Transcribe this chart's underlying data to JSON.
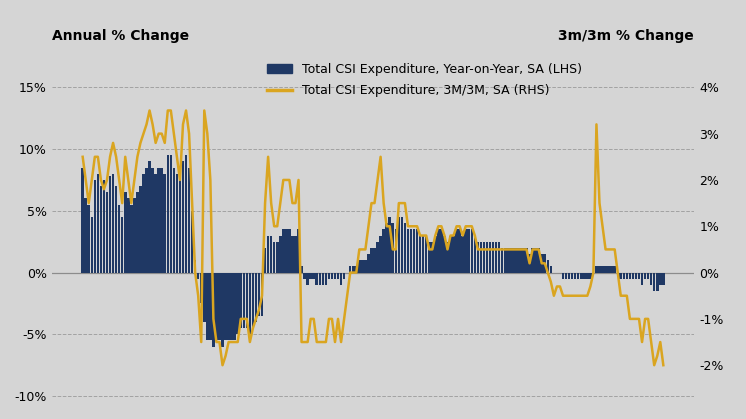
{
  "title_left": "Annual % Change",
  "title_right": "3m/3m % Change",
  "bar_color": "#1F3864",
  "line_color": "#DAA520",
  "background_color": "#D5D5D5",
  "ylim_left": [
    -10.5,
    18.0
  ],
  "ylim_right": [
    -2.8,
    4.8
  ],
  "yticks_left": [
    -10,
    -5,
    0,
    5,
    10,
    15
  ],
  "yticks_right": [
    -2,
    -1,
    0,
    1,
    2,
    3,
    4
  ],
  "legend_bar_label": "Total CSI Expenditure, Year-on-Year, SA (LHS)",
  "legend_line_label": "Total CSI Expenditure, 3M/3M, SA (RHS)",
  "bar_values": [
    8.5,
    6.0,
    5.5,
    4.5,
    7.5,
    8.0,
    7.0,
    7.5,
    6.5,
    7.8,
    8.0,
    7.0,
    5.5,
    4.5,
    6.5,
    6.0,
    5.5,
    6.0,
    6.5,
    7.0,
    8.0,
    8.5,
    9.0,
    8.5,
    8.0,
    8.5,
    8.5,
    8.0,
    9.5,
    9.5,
    8.5,
    8.0,
    7.5,
    9.0,
    9.5,
    8.5,
    5.0,
    1.0,
    -0.5,
    -2.5,
    -4.0,
    -5.5,
    -5.5,
    -6.0,
    -5.5,
    -5.5,
    -6.0,
    -5.5,
    -5.5,
    -5.5,
    -5.5,
    -5.0,
    -4.5,
    -4.5,
    -4.5,
    -5.0,
    -4.5,
    -4.0,
    -3.5,
    -3.5,
    2.0,
    3.0,
    3.0,
    2.5,
    2.5,
    3.0,
    3.5,
    3.5,
    3.5,
    3.0,
    3.0,
    3.5,
    0.5,
    -0.5,
    -1.0,
    -0.5,
    -0.5,
    -1.0,
    -1.0,
    -1.0,
    -1.0,
    -0.5,
    -0.5,
    -0.5,
    -0.5,
    -1.0,
    -0.5,
    0.0,
    0.5,
    0.5,
    0.5,
    1.0,
    1.0,
    1.0,
    1.5,
    2.0,
    2.0,
    2.5,
    3.0,
    3.5,
    4.0,
    4.5,
    4.0,
    3.5,
    4.5,
    4.5,
    4.0,
    3.5,
    3.5,
    3.5,
    3.5,
    3.0,
    3.0,
    3.0,
    2.5,
    2.5,
    3.0,
    3.5,
    3.5,
    3.0,
    2.5,
    3.0,
    3.0,
    3.5,
    3.5,
    3.0,
    3.5,
    3.5,
    3.5,
    3.0,
    2.5,
    2.5,
    2.5,
    2.5,
    2.5,
    2.5,
    2.5,
    2.5,
    2.0,
    2.0,
    2.0,
    2.0,
    2.0,
    2.0,
    2.0,
    2.0,
    2.0,
    1.5,
    2.0,
    2.0,
    2.0,
    1.5,
    1.5,
    1.0,
    0.5,
    0.0,
    0.0,
    0.0,
    -0.5,
    -0.5,
    -0.5,
    -0.5,
    -0.5,
    -0.5,
    -0.5,
    -0.5,
    -0.5,
    -0.5,
    0.0,
    0.5,
    0.5,
    0.5,
    0.5,
    0.5,
    0.5,
    0.5,
    0.0,
    -0.5,
    -0.5,
    -0.5,
    -0.5,
    -0.5,
    -0.5,
    -0.5,
    -1.0,
    -0.5,
    -0.5,
    -1.0,
    -1.5,
    -1.5,
    -1.0,
    -1.0
  ],
  "line_values": [
    2.5,
    2.0,
    1.5,
    2.0,
    2.5,
    2.5,
    2.0,
    1.8,
    2.0,
    2.5,
    2.8,
    2.5,
    2.0,
    1.5,
    2.5,
    2.0,
    1.5,
    2.0,
    2.5,
    2.8,
    3.0,
    3.2,
    3.5,
    3.2,
    2.8,
    3.0,
    3.0,
    2.8,
    3.5,
    3.5,
    3.0,
    2.5,
    2.0,
    3.2,
    3.5,
    3.0,
    1.5,
    0.0,
    -0.5,
    -1.5,
    3.5,
    3.0,
    2.0,
    -1.0,
    -1.5,
    -1.5,
    -2.0,
    -1.8,
    -1.5,
    -1.5,
    -1.5,
    -1.5,
    -1.0,
    -1.0,
    -1.0,
    -1.5,
    -1.2,
    -1.0,
    -0.8,
    -0.5,
    1.5,
    2.5,
    1.5,
    1.0,
    1.0,
    1.5,
    2.0,
    2.0,
    2.0,
    1.5,
    1.5,
    2.0,
    -1.5,
    -1.5,
    -1.5,
    -1.0,
    -1.0,
    -1.5,
    -1.5,
    -1.5,
    -1.5,
    -1.0,
    -1.0,
    -1.5,
    -1.0,
    -1.5,
    -1.0,
    -0.5,
    0.0,
    0.0,
    0.0,
    0.5,
    0.5,
    0.5,
    1.0,
    1.5,
    1.5,
    2.0,
    2.5,
    1.5,
    1.0,
    1.0,
    0.5,
    0.5,
    1.5,
    1.5,
    1.5,
    1.0,
    1.0,
    1.0,
    1.0,
    0.8,
    0.8,
    0.8,
    0.5,
    0.5,
    0.8,
    1.0,
    1.0,
    0.8,
    0.5,
    0.8,
    0.8,
    1.0,
    1.0,
    0.8,
    1.0,
    1.0,
    1.0,
    0.8,
    0.5,
    0.5,
    0.5,
    0.5,
    0.5,
    0.5,
    0.5,
    0.5,
    0.5,
    0.5,
    0.5,
    0.5,
    0.5,
    0.5,
    0.5,
    0.5,
    0.5,
    0.2,
    0.5,
    0.5,
    0.5,
    0.2,
    0.2,
    0.0,
    -0.2,
    -0.5,
    -0.3,
    -0.3,
    -0.5,
    -0.5,
    -0.5,
    -0.5,
    -0.5,
    -0.5,
    -0.5,
    -0.5,
    -0.5,
    -0.3,
    0.0,
    3.2,
    1.5,
    1.0,
    0.5,
    0.5,
    0.5,
    0.5,
    0.0,
    -0.5,
    -0.5,
    -0.5,
    -1.0,
    -1.0,
    -1.0,
    -1.0,
    -1.5,
    -1.0,
    -1.0,
    -1.5,
    -2.0,
    -1.8,
    -1.5,
    -2.0
  ]
}
